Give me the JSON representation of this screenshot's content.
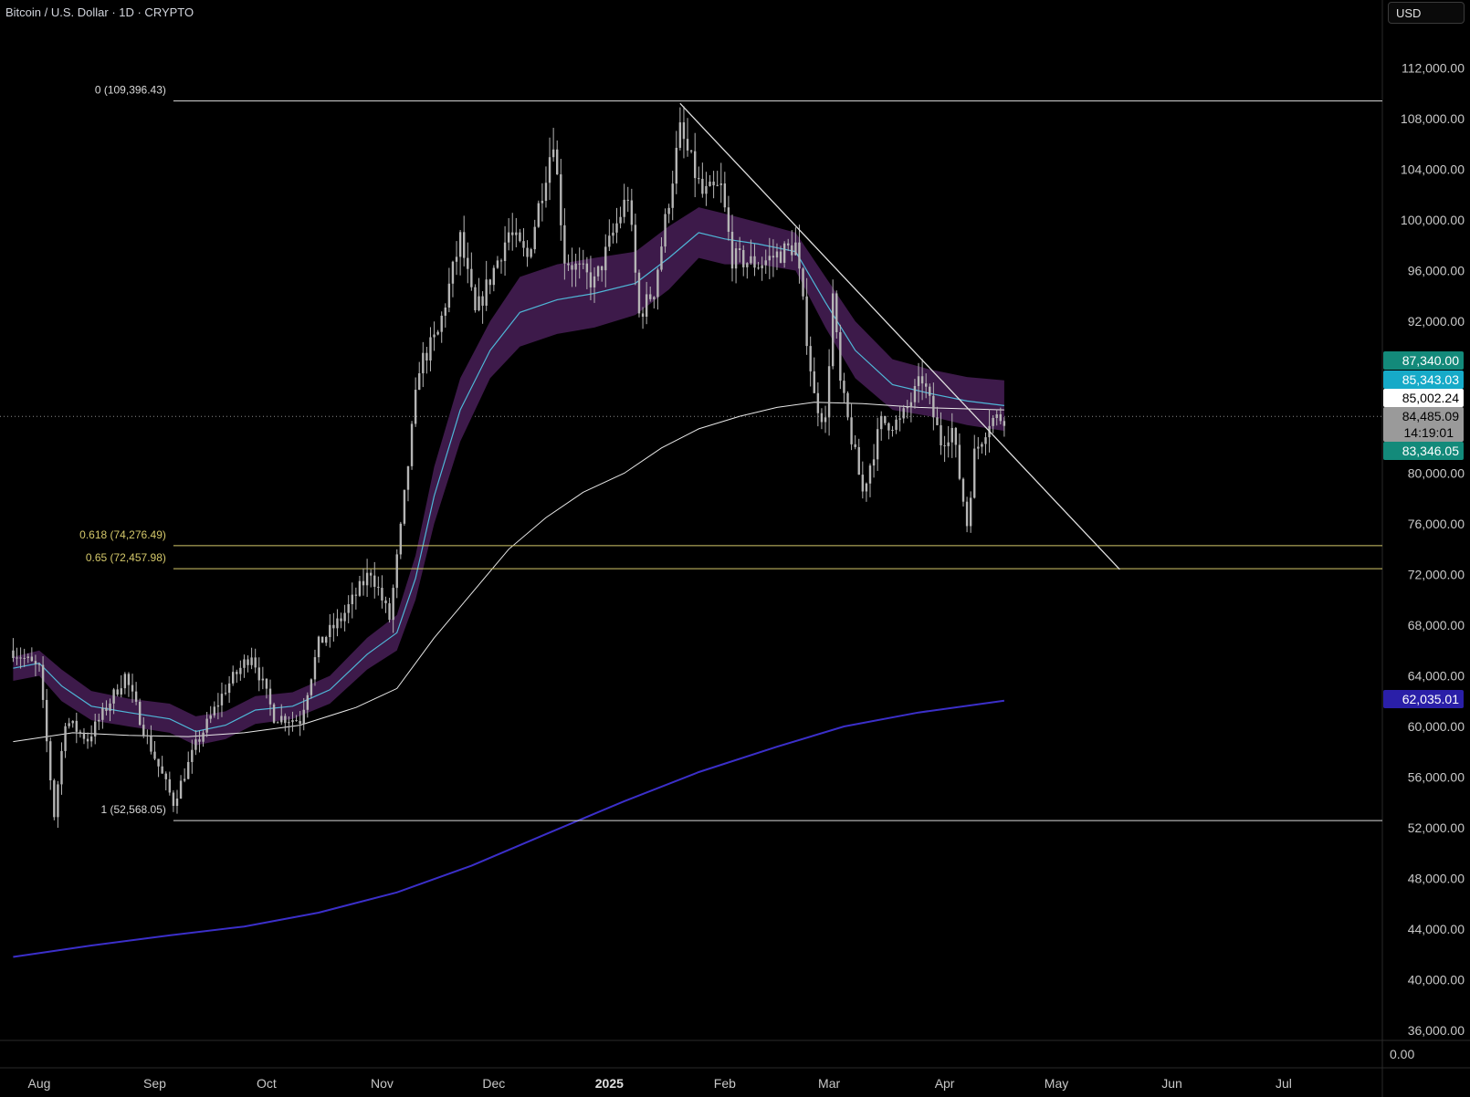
{
  "header": {
    "symbol_title": "Bitcoin / U.S. Dollar · 1D · CRYPTO",
    "currency_button": "USD"
  },
  "colors": {
    "background": "#000000",
    "candle": "#b5b5b5",
    "fib_top_bottom": "#d9d9d9",
    "fib_golden": "#d4c86a",
    "trendline": "#e0e0e0",
    "ema_band_fill": "#3d1a4a",
    "ema_band_line": "#4fb7d8",
    "ma_white": "#e8e8e8",
    "ma_blue": "#3b2fc9"
  },
  "chart_data": {
    "type": "candlestick",
    "title": "Bitcoin / U.S. Dollar · 1D · CRYPTO",
    "x_axis": {
      "months": [
        {
          "label": "Aug",
          "date": "2024-08-01"
        },
        {
          "label": "Sep",
          "date": "2024-09-01"
        },
        {
          "label": "Oct",
          "date": "2024-10-01"
        },
        {
          "label": "Nov",
          "date": "2024-11-01"
        },
        {
          "label": "Dec",
          "date": "2024-12-01"
        },
        {
          "label": "2025",
          "date": "2025-01-01",
          "bold": true
        },
        {
          "label": "Feb",
          "date": "2025-02-01"
        },
        {
          "label": "Mar",
          "date": "2025-03-01"
        },
        {
          "label": "Apr",
          "date": "2025-04-01"
        },
        {
          "label": "May",
          "date": "2025-05-01"
        },
        {
          "label": "Jun",
          "date": "2025-06-01"
        },
        {
          "label": "Jul",
          "date": "2025-07-01"
        }
      ]
    },
    "y_axis": {
      "range": [
        34500,
        115000
      ],
      "ticks": [
        {
          "value": 112000,
          "label": "112,000.00"
        },
        {
          "value": 108000,
          "label": "108,000.00"
        },
        {
          "value": 104000,
          "label": "104,000.00"
        },
        {
          "value": 100000,
          "label": "100,000.00"
        },
        {
          "value": 96000,
          "label": "96,000.00"
        },
        {
          "value": 92000,
          "label": "92,000.00"
        },
        {
          "value": 80000,
          "label": "80,000.00"
        },
        {
          "value": 76000,
          "label": "76,000.00"
        },
        {
          "value": 72000,
          "label": "72,000.00"
        },
        {
          "value": 68000,
          "label": "68,000.00"
        },
        {
          "value": 64000,
          "label": "64,000.00"
        },
        {
          "value": 60000,
          "label": "60,000.00"
        },
        {
          "value": 56000,
          "label": "56,000.00"
        },
        {
          "value": 52000,
          "label": "52,000.00"
        },
        {
          "value": 48000,
          "label": "48,000.00"
        },
        {
          "value": 44000,
          "label": "44,000.00"
        },
        {
          "value": 40000,
          "label": "40,000.00"
        },
        {
          "value": 36000,
          "label": "36,000.00"
        }
      ],
      "lower_pane_label": "0.00"
    },
    "price_badges": [
      {
        "value": 87340,
        "label": "87,340.00",
        "bg": "#138a7a",
        "fg": "#ffffff"
      },
      {
        "value": 85343.03,
        "label": "85,343.03",
        "bg": "#16aac8",
        "fg": "#ffffff"
      },
      {
        "value": 85002.24,
        "label": "85,002.24",
        "bg": "#ffffff",
        "fg": "#000000"
      },
      {
        "value": 84485.09,
        "label": "84,485.09",
        "sub": "14:19:01",
        "bg": "#9a9a9a",
        "fg": "#000000"
      },
      {
        "value": 83346.05,
        "label": "83,346.05",
        "bg": "#138a7a",
        "fg": "#ffffff"
      },
      {
        "value": 62035.01,
        "label": "62,035.01",
        "bg": "#2a1fa8",
        "fg": "#ffffff"
      }
    ],
    "current_price": 84485.09,
    "fib_levels": [
      {
        "ratio": "0",
        "price": 109396.43,
        "label": "0 (109,396.43)",
        "color": "#d9d9d9"
      },
      {
        "ratio": "0.618",
        "price": 74276.49,
        "label": "0.618 (74,276.49)",
        "color": "#d4c86a"
      },
      {
        "ratio": "0.65",
        "price": 72457.98,
        "label": "0.65 (72,457.98)",
        "color": "#d4c86a"
      },
      {
        "ratio": "1",
        "price": 52568.05,
        "label": "1 (52,568.05)",
        "color": "#d9d9d9"
      }
    ],
    "fib_start_date": "2024-09-06",
    "trendline": {
      "from": {
        "date": "2025-01-20",
        "price": 109200
      },
      "to": {
        "date": "2025-05-18",
        "price": 72400
      }
    },
    "price_path": [
      [
        "2024-07-25",
        66000
      ],
      [
        "2024-08-01",
        64500
      ],
      [
        "2024-08-05",
        53000
      ],
      [
        "2024-08-08",
        60500
      ],
      [
        "2024-08-14",
        59000
      ],
      [
        "2024-08-24",
        64000
      ],
      [
        "2024-08-30",
        59000
      ],
      [
        "2024-09-06",
        54000
      ],
      [
        "2024-09-12",
        58500
      ],
      [
        "2024-09-20",
        63000
      ],
      [
        "2024-09-27",
        65800
      ],
      [
        "2024-10-03",
        60800
      ],
      [
        "2024-10-10",
        60500
      ],
      [
        "2024-10-15",
        66500
      ],
      [
        "2024-10-21",
        68500
      ],
      [
        "2024-10-29",
        72300
      ],
      [
        "2024-11-03",
        68500
      ],
      [
        "2024-11-06",
        75500
      ],
      [
        "2024-11-11",
        88500
      ],
      [
        "2024-11-16",
        91000
      ],
      [
        "2024-11-22",
        98500
      ],
      [
        "2024-11-26",
        92500
      ],
      [
        "2024-12-05",
        99000
      ],
      [
        "2024-12-10",
        97000
      ],
      [
        "2024-12-17",
        106500
      ],
      [
        "2024-12-20",
        97000
      ],
      [
        "2024-12-28",
        95000
      ],
      [
        "2025-01-06",
        102000
      ],
      [
        "2025-01-09",
        92500
      ],
      [
        "2025-01-13",
        94500
      ],
      [
        "2025-01-20",
        107000
      ],
      [
        "2025-01-26",
        102000
      ],
      [
        "2025-01-31",
        102500
      ],
      [
        "2025-02-03",
        97000
      ],
      [
        "2025-02-10",
        96500
      ],
      [
        "2025-02-20",
        98000
      ],
      [
        "2025-02-25",
        86000
      ],
      [
        "2025-02-28",
        84000
      ],
      [
        "2025-03-02",
        94000
      ],
      [
        "2025-03-04",
        87000
      ],
      [
        "2025-03-10",
        78500
      ],
      [
        "2025-03-15",
        84000
      ],
      [
        "2025-03-20",
        84000
      ],
      [
        "2025-03-26",
        87500
      ],
      [
        "2025-03-31",
        82500
      ],
      [
        "2025-04-03",
        83500
      ],
      [
        "2025-04-07",
        76000
      ],
      [
        "2025-04-09",
        81500
      ],
      [
        "2025-04-13",
        84200
      ],
      [
        "2025-04-17",
        84485
      ]
    ],
    "ema_band": {
      "points": [
        [
          "2024-07-25",
          63600,
          65500
        ],
        [
          "2024-08-01",
          64000,
          66000
        ],
        [
          "2024-08-07",
          62000,
          64500
        ],
        [
          "2024-08-15",
          60500,
          62800
        ],
        [
          "2024-08-25",
          60000,
          62200
        ],
        [
          "2024-09-05",
          59500,
          61800
        ],
        [
          "2024-09-12",
          58500,
          60800
        ],
        [
          "2024-09-20",
          59000,
          61200
        ],
        [
          "2024-09-28",
          60200,
          62400
        ],
        [
          "2024-10-08",
          60600,
          62700
        ],
        [
          "2024-10-18",
          61800,
          64000
        ],
        [
          "2024-10-28",
          64500,
          67000
        ],
        [
          "2024-11-05",
          66000,
          68800
        ],
        [
          "2024-11-10",
          70000,
          73500
        ],
        [
          "2024-11-15",
          76000,
          80500
        ],
        [
          "2024-11-22",
          82500,
          87500
        ],
        [
          "2024-11-30",
          87500,
          92000
        ],
        [
          "2024-12-08",
          90000,
          95500
        ],
        [
          "2024-12-18",
          91000,
          96500
        ],
        [
          "2024-12-28",
          91500,
          97000
        ],
        [
          "2025-01-08",
          92500,
          97500
        ],
        [
          "2025-01-17",
          94500,
          99500
        ],
        [
          "2025-01-25",
          97000,
          101000
        ],
        [
          "2025-02-01",
          96500,
          100500
        ],
        [
          "2025-02-10",
          96500,
          99800
        ],
        [
          "2025-02-20",
          96000,
          99000
        ],
        [
          "2025-02-28",
          91500,
          95500
        ],
        [
          "2025-03-08",
          87500,
          92000
        ],
        [
          "2025-03-18",
          85000,
          89000
        ],
        [
          "2025-03-28",
          84500,
          88200
        ],
        [
          "2025-04-07",
          83800,
          87600
        ],
        [
          "2025-04-17",
          83346,
          87340
        ]
      ],
      "mid": [
        [
          "2024-07-25",
          64600
        ],
        [
          "2024-08-01",
          65000
        ],
        [
          "2024-08-07",
          63200
        ],
        [
          "2024-08-15",
          61600
        ],
        [
          "2024-08-25",
          61100
        ],
        [
          "2024-09-05",
          60600
        ],
        [
          "2024-09-12",
          59600
        ],
        [
          "2024-09-20",
          60100
        ],
        [
          "2024-09-28",
          61300
        ],
        [
          "2024-10-08",
          61600
        ],
        [
          "2024-10-18",
          62900
        ],
        [
          "2024-10-28",
          65700
        ],
        [
          "2024-11-05",
          67400
        ],
        [
          "2024-11-10",
          71700
        ],
        [
          "2024-11-15",
          78200
        ],
        [
          "2024-11-22",
          85000
        ],
        [
          "2024-11-30",
          89700
        ],
        [
          "2024-12-08",
          92700
        ],
        [
          "2024-12-18",
          93700
        ],
        [
          "2024-12-28",
          94200
        ],
        [
          "2025-01-08",
          95000
        ],
        [
          "2025-01-17",
          97000
        ],
        [
          "2025-01-25",
          99000
        ],
        [
          "2025-02-01",
          98500
        ],
        [
          "2025-02-10",
          98100
        ],
        [
          "2025-02-20",
          97500
        ],
        [
          "2025-02-28",
          93500
        ],
        [
          "2025-03-08",
          89700
        ],
        [
          "2025-03-18",
          87000
        ],
        [
          "2025-03-28",
          86300
        ],
        [
          "2025-04-07",
          85700
        ],
        [
          "2025-04-17",
          85343
        ]
      ]
    },
    "ma_white": [
      [
        "2024-07-25",
        58800
      ],
      [
        "2024-08-10",
        59500
      ],
      [
        "2024-08-25",
        59300
      ],
      [
        "2024-09-10",
        59200
      ],
      [
        "2024-09-25",
        59500
      ],
      [
        "2024-10-10",
        60100
      ],
      [
        "2024-10-25",
        61500
      ],
      [
        "2024-11-05",
        63000
      ],
      [
        "2024-11-15",
        67000
      ],
      [
        "2024-11-25",
        70500
      ],
      [
        "2024-12-05",
        74000
      ],
      [
        "2024-12-15",
        76500
      ],
      [
        "2024-12-25",
        78500
      ],
      [
        "2025-01-05",
        80000
      ],
      [
        "2025-01-15",
        82000
      ],
      [
        "2025-01-25",
        83500
      ],
      [
        "2025-02-05",
        84500
      ],
      [
        "2025-02-15",
        85200
      ],
      [
        "2025-02-25",
        85600
      ],
      [
        "2025-03-10",
        85500
      ],
      [
        "2025-03-25",
        85200
      ],
      [
        "2025-04-05",
        85100
      ],
      [
        "2025-04-17",
        85002
      ]
    ],
    "ma_blue": [
      [
        "2024-07-25",
        41800
      ],
      [
        "2024-08-15",
        42700
      ],
      [
        "2024-09-05",
        43500
      ],
      [
        "2024-09-25",
        44200
      ],
      [
        "2024-10-15",
        45300
      ],
      [
        "2024-11-05",
        46900
      ],
      [
        "2024-11-25",
        49000
      ],
      [
        "2024-12-15",
        51500
      ],
      [
        "2025-01-05",
        54100
      ],
      [
        "2025-01-25",
        56400
      ],
      [
        "2025-02-15",
        58400
      ],
      [
        "2025-03-05",
        60000
      ],
      [
        "2025-03-25",
        61100
      ],
      [
        "2025-04-17",
        62035
      ]
    ]
  }
}
